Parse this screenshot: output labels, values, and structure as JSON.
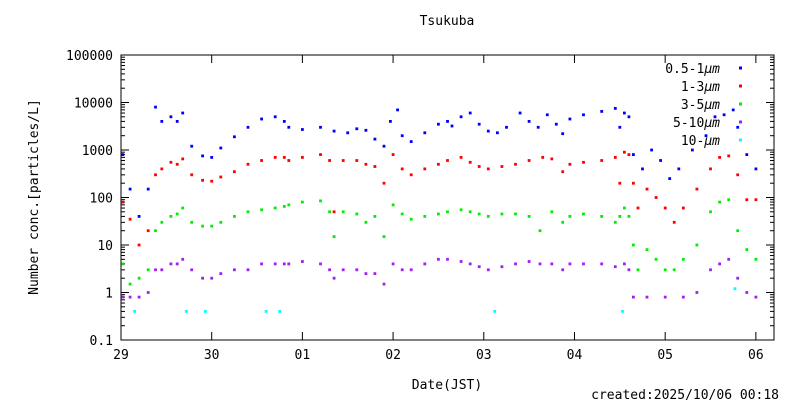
{
  "chart_data": {
    "type": "scatter",
    "title": "Tsukuba",
    "xlabel": "Date(JST)",
    "ylabel": "Number conc.[particles/L]",
    "yscale": "log",
    "ylim": [
      0.1,
      100000
    ],
    "xlim": [
      0,
      7.2
    ],
    "y_ticks": [
      {
        "value": 0.1,
        "label": "0.1"
      },
      {
        "value": 1,
        "label": "1"
      },
      {
        "value": 10,
        "label": "10"
      },
      {
        "value": 100,
        "label": "100"
      },
      {
        "value": 1000,
        "label": "1000"
      },
      {
        "value": 10000,
        "label": "10000"
      },
      {
        "value": 100000,
        "label": "100000"
      }
    ],
    "x_ticks": [
      {
        "value": 0,
        "label": "29"
      },
      {
        "value": 1,
        "label": "30"
      },
      {
        "value": 2,
        "label": "01"
      },
      {
        "value": 3,
        "label": "02"
      },
      {
        "value": 4,
        "label": "03"
      },
      {
        "value": 5,
        "label": "04"
      },
      {
        "value": 6,
        "label": "05"
      },
      {
        "value": 7,
        "label": "06"
      }
    ],
    "legend_position": "top-right",
    "footer": "created:2025/10/06 00:18",
    "series": [
      {
        "name": "0.5-1μm",
        "label_prefix": "0.5-1",
        "unit": "μm",
        "color": "#0000ff",
        "points": [
          [
            0.02,
            800
          ],
          [
            0.1,
            150
          ],
          [
            0.2,
            40
          ],
          [
            0.3,
            150
          ],
          [
            0.38,
            8000
          ],
          [
            0.45,
            4000
          ],
          [
            0.55,
            5000
          ],
          [
            0.62,
            4000
          ],
          [
            0.68,
            6000
          ],
          [
            0.78,
            1200
          ],
          [
            0.9,
            750
          ],
          [
            1.0,
            700
          ],
          [
            1.1,
            1100
          ],
          [
            1.25,
            1900
          ],
          [
            1.4,
            3000
          ],
          [
            1.55,
            4500
          ],
          [
            1.7,
            5000
          ],
          [
            1.8,
            4000
          ],
          [
            1.85,
            3000
          ],
          [
            2.0,
            2700
          ],
          [
            2.2,
            3000
          ],
          [
            2.35,
            2500
          ],
          [
            2.5,
            2300
          ],
          [
            2.6,
            2800
          ],
          [
            2.7,
            2600
          ],
          [
            2.8,
            1700
          ],
          [
            2.9,
            1200
          ],
          [
            2.97,
            4000
          ],
          [
            3.05,
            7000
          ],
          [
            3.1,
            2000
          ],
          [
            3.2,
            1500
          ],
          [
            3.35,
            2300
          ],
          [
            3.5,
            3500
          ],
          [
            3.6,
            4000
          ],
          [
            3.65,
            3200
          ],
          [
            3.75,
            5000
          ],
          [
            3.85,
            6000
          ],
          [
            3.95,
            3500
          ],
          [
            4.05,
            2500
          ],
          [
            4.15,
            2300
          ],
          [
            4.25,
            3000
          ],
          [
            4.4,
            6000
          ],
          [
            4.5,
            4000
          ],
          [
            4.6,
            3000
          ],
          [
            4.7,
            5500
          ],
          [
            4.8,
            3500
          ],
          [
            4.87,
            2200
          ],
          [
            4.95,
            4500
          ],
          [
            5.1,
            5500
          ],
          [
            5.3,
            6500
          ],
          [
            5.45,
            7500
          ],
          [
            5.5,
            3000
          ],
          [
            5.55,
            6000
          ],
          [
            5.6,
            5000
          ],
          [
            5.65,
            800
          ],
          [
            5.75,
            400
          ],
          [
            5.85,
            1000
          ],
          [
            5.95,
            600
          ],
          [
            6.05,
            250
          ],
          [
            6.15,
            400
          ],
          [
            6.3,
            1000
          ],
          [
            6.45,
            2000
          ],
          [
            6.55,
            5000
          ],
          [
            6.65,
            5500
          ],
          [
            6.75,
            7000
          ],
          [
            6.8,
            3000
          ],
          [
            6.9,
            800
          ],
          [
            7.0,
            400
          ]
        ]
      },
      {
        "name": "1-3μm",
        "label_prefix": "1-3",
        "unit": "μm",
        "color": "#ff0000",
        "points": [
          [
            0.02,
            80
          ],
          [
            0.1,
            35
          ],
          [
            0.2,
            10
          ],
          [
            0.3,
            20
          ],
          [
            0.38,
            300
          ],
          [
            0.45,
            400
          ],
          [
            0.55,
            550
          ],
          [
            0.62,
            500
          ],
          [
            0.68,
            650
          ],
          [
            0.78,
            300
          ],
          [
            0.9,
            230
          ],
          [
            1.0,
            220
          ],
          [
            1.1,
            270
          ],
          [
            1.25,
            350
          ],
          [
            1.4,
            500
          ],
          [
            1.55,
            600
          ],
          [
            1.7,
            700
          ],
          [
            1.8,
            700
          ],
          [
            1.85,
            600
          ],
          [
            2.0,
            700
          ],
          [
            2.2,
            800
          ],
          [
            2.3,
            600
          ],
          [
            2.35,
            50
          ],
          [
            2.45,
            600
          ],
          [
            2.6,
            600
          ],
          [
            2.7,
            500
          ],
          [
            2.8,
            450
          ],
          [
            2.9,
            200
          ],
          [
            3.0,
            800
          ],
          [
            3.1,
            400
          ],
          [
            3.2,
            300
          ],
          [
            3.35,
            400
          ],
          [
            3.5,
            500
          ],
          [
            3.6,
            600
          ],
          [
            3.75,
            700
          ],
          [
            3.85,
            550
          ],
          [
            3.95,
            450
          ],
          [
            4.05,
            400
          ],
          [
            4.2,
            450
          ],
          [
            4.35,
            500
          ],
          [
            4.5,
            600
          ],
          [
            4.65,
            700
          ],
          [
            4.75,
            650
          ],
          [
            4.87,
            350
          ],
          [
            4.95,
            500
          ],
          [
            5.1,
            550
          ],
          [
            5.3,
            600
          ],
          [
            5.45,
            700
          ],
          [
            5.5,
            200
          ],
          [
            5.55,
            900
          ],
          [
            5.6,
            800
          ],
          [
            5.65,
            200
          ],
          [
            5.7,
            60
          ],
          [
            5.8,
            150
          ],
          [
            5.9,
            100
          ],
          [
            6.0,
            60
          ],
          [
            6.1,
            30
          ],
          [
            6.2,
            60
          ],
          [
            6.35,
            150
          ],
          [
            6.5,
            400
          ],
          [
            6.6,
            700
          ],
          [
            6.7,
            750
          ],
          [
            6.8,
            300
          ],
          [
            6.9,
            90
          ],
          [
            7.0,
            90
          ]
        ]
      },
      {
        "name": "3-5μm",
        "label_prefix": "3-5",
        "unit": "μm",
        "color": "#00ee00",
        "points": [
          [
            0.02,
            4
          ],
          [
            0.1,
            1.5
          ],
          [
            0.2,
            2
          ],
          [
            0.3,
            3
          ],
          [
            0.38,
            20
          ],
          [
            0.45,
            30
          ],
          [
            0.55,
            40
          ],
          [
            0.62,
            45
          ],
          [
            0.68,
            60
          ],
          [
            0.78,
            30
          ],
          [
            0.9,
            25
          ],
          [
            1.0,
            25
          ],
          [
            1.1,
            30
          ],
          [
            1.25,
            40
          ],
          [
            1.4,
            50
          ],
          [
            1.55,
            55
          ],
          [
            1.7,
            60
          ],
          [
            1.8,
            65
          ],
          [
            1.85,
            70
          ],
          [
            2.0,
            80
          ],
          [
            2.2,
            85
          ],
          [
            2.3,
            50
          ],
          [
            2.35,
            15
          ],
          [
            2.45,
            50
          ],
          [
            2.6,
            45
          ],
          [
            2.7,
            30
          ],
          [
            2.8,
            40
          ],
          [
            2.9,
            15
          ],
          [
            3.0,
            70
          ],
          [
            3.1,
            45
          ],
          [
            3.2,
            35
          ],
          [
            3.35,
            40
          ],
          [
            3.5,
            45
          ],
          [
            3.6,
            50
          ],
          [
            3.75,
            55
          ],
          [
            3.85,
            50
          ],
          [
            3.95,
            45
          ],
          [
            4.05,
            40
          ],
          [
            4.2,
            45
          ],
          [
            4.35,
            45
          ],
          [
            4.5,
            40
          ],
          [
            4.62,
            20
          ],
          [
            4.75,
            50
          ],
          [
            4.87,
            30
          ],
          [
            4.95,
            40
          ],
          [
            5.1,
            45
          ],
          [
            5.3,
            40
          ],
          [
            5.45,
            30
          ],
          [
            5.5,
            40
          ],
          [
            5.55,
            60
          ],
          [
            5.6,
            40
          ],
          [
            5.65,
            10
          ],
          [
            5.7,
            3
          ],
          [
            5.8,
            8
          ],
          [
            5.9,
            5
          ],
          [
            6.0,
            3
          ],
          [
            6.1,
            3
          ],
          [
            6.2,
            5
          ],
          [
            6.35,
            10
          ],
          [
            6.5,
            50
          ],
          [
            6.6,
            80
          ],
          [
            6.7,
            90
          ],
          [
            6.8,
            20
          ],
          [
            6.9,
            8
          ],
          [
            7.0,
            5
          ]
        ]
      },
      {
        "name": "5-10μm",
        "label_prefix": "5-10",
        "unit": "μm",
        "color": "#a020f0",
        "points": [
          [
            0.02,
            0.8
          ],
          [
            0.1,
            0.8
          ],
          [
            0.2,
            0.8
          ],
          [
            0.3,
            1
          ],
          [
            0.38,
            3
          ],
          [
            0.45,
            3
          ],
          [
            0.55,
            4
          ],
          [
            0.62,
            4
          ],
          [
            0.68,
            5
          ],
          [
            0.78,
            3
          ],
          [
            0.9,
            2
          ],
          [
            1.0,
            2
          ],
          [
            1.1,
            2.5
          ],
          [
            1.25,
            3
          ],
          [
            1.4,
            3
          ],
          [
            1.55,
            4
          ],
          [
            1.7,
            4
          ],
          [
            1.8,
            4
          ],
          [
            1.85,
            4
          ],
          [
            2.0,
            4.5
          ],
          [
            2.2,
            4
          ],
          [
            2.3,
            3
          ],
          [
            2.35,
            2
          ],
          [
            2.45,
            3
          ],
          [
            2.6,
            3
          ],
          [
            2.7,
            2.5
          ],
          [
            2.8,
            2.5
          ],
          [
            2.9,
            1.5
          ],
          [
            3.0,
            4
          ],
          [
            3.1,
            3
          ],
          [
            3.2,
            3
          ],
          [
            3.35,
            4
          ],
          [
            3.5,
            5
          ],
          [
            3.6,
            5
          ],
          [
            3.75,
            4.5
          ],
          [
            3.85,
            4
          ],
          [
            3.95,
            3.5
          ],
          [
            4.05,
            3
          ],
          [
            4.2,
            3.5
          ],
          [
            4.35,
            4
          ],
          [
            4.5,
            4.5
          ],
          [
            4.62,
            4
          ],
          [
            4.75,
            4
          ],
          [
            4.87,
            3
          ],
          [
            4.95,
            4
          ],
          [
            5.1,
            4
          ],
          [
            5.3,
            4
          ],
          [
            5.45,
            3.5
          ],
          [
            5.55,
            4
          ],
          [
            5.6,
            3
          ],
          [
            5.65,
            0.8
          ],
          [
            5.8,
            0.8
          ],
          [
            6.0,
            0.8
          ],
          [
            6.2,
            0.8
          ],
          [
            6.35,
            1
          ],
          [
            6.5,
            3
          ],
          [
            6.6,
            4
          ],
          [
            6.7,
            5
          ],
          [
            6.8,
            2
          ],
          [
            6.9,
            1
          ],
          [
            7.0,
            0.8
          ]
        ]
      },
      {
        "name": "10-μm",
        "label_prefix": "10-",
        "unit": "μm",
        "color": "#00ffff",
        "points": [
          [
            0.15,
            0.4
          ],
          [
            0.72,
            0.4
          ],
          [
            0.93,
            0.4
          ],
          [
            1.6,
            0.4
          ],
          [
            1.75,
            0.4
          ],
          [
            4.12,
            0.4
          ],
          [
            5.53,
            0.4
          ],
          [
            6.77,
            1.2
          ]
        ]
      }
    ]
  }
}
